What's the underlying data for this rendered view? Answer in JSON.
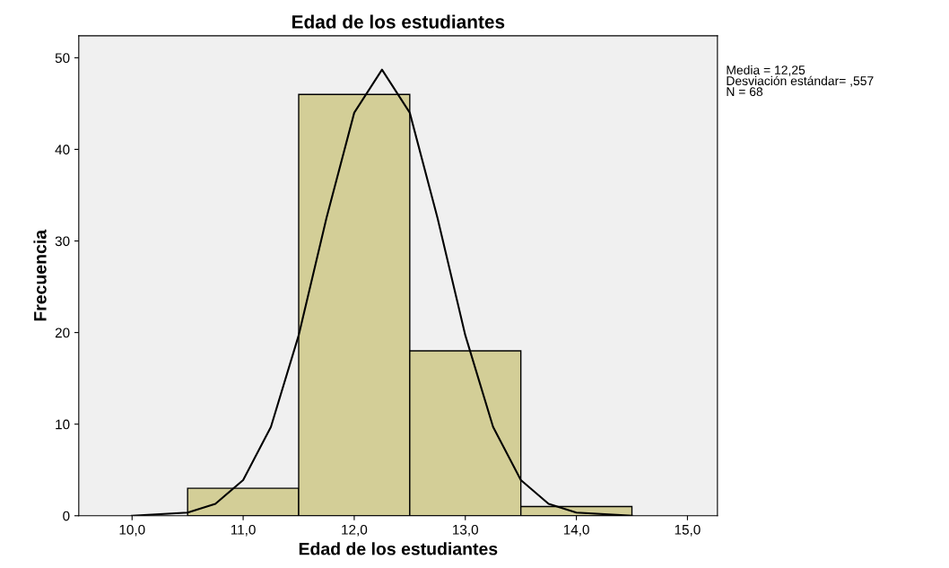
{
  "chart_data": {
    "type": "histogram",
    "title": "Edad de los estudiantes",
    "xlabel": "Edad de los estudiantes",
    "ylabel": "Frecuencia",
    "bins": [
      10.5,
      11.5,
      12.5,
      13.5,
      14.5
    ],
    "values": [
      3,
      46,
      18,
      1
    ],
    "color": "#d3ce97",
    "series": [
      {
        "type": "line",
        "color": "#000000",
        "x": [
          10.0,
          10.5,
          10.75,
          11.0,
          11.25,
          11.5,
          11.75,
          12.0,
          12.25,
          12.5,
          12.75,
          13.0,
          13.25,
          13.5,
          13.75,
          14.0,
          14.5
        ],
        "values": [
          0.0,
          0.35,
          1.3,
          3.9,
          9.7,
          19.7,
          32.5,
          44.0,
          48.7,
          44.0,
          32.5,
          19.7,
          9.7,
          3.9,
          1.3,
          0.35,
          0.0
        ]
      }
    ],
    "xlim": [
      9.52,
      15.27
    ],
    "xticks": [
      {
        "value": 10,
        "label": "10,0"
      },
      {
        "value": 11,
        "label": "11,0"
      },
      {
        "value": 12,
        "label": "12,0"
      },
      {
        "value": 13,
        "label": "13,0"
      },
      {
        "value": 14,
        "label": "14,0"
      },
      {
        "value": 15,
        "label": "15,0"
      }
    ],
    "ylim": [
      0,
      52.4
    ],
    "yticks": [
      0,
      10,
      20,
      30,
      40,
      50
    ],
    "annotations": [
      "Media = 12,25",
      "Desviación estándar= ,557",
      "N = 68"
    ],
    "grid": false,
    "legend": false
  }
}
